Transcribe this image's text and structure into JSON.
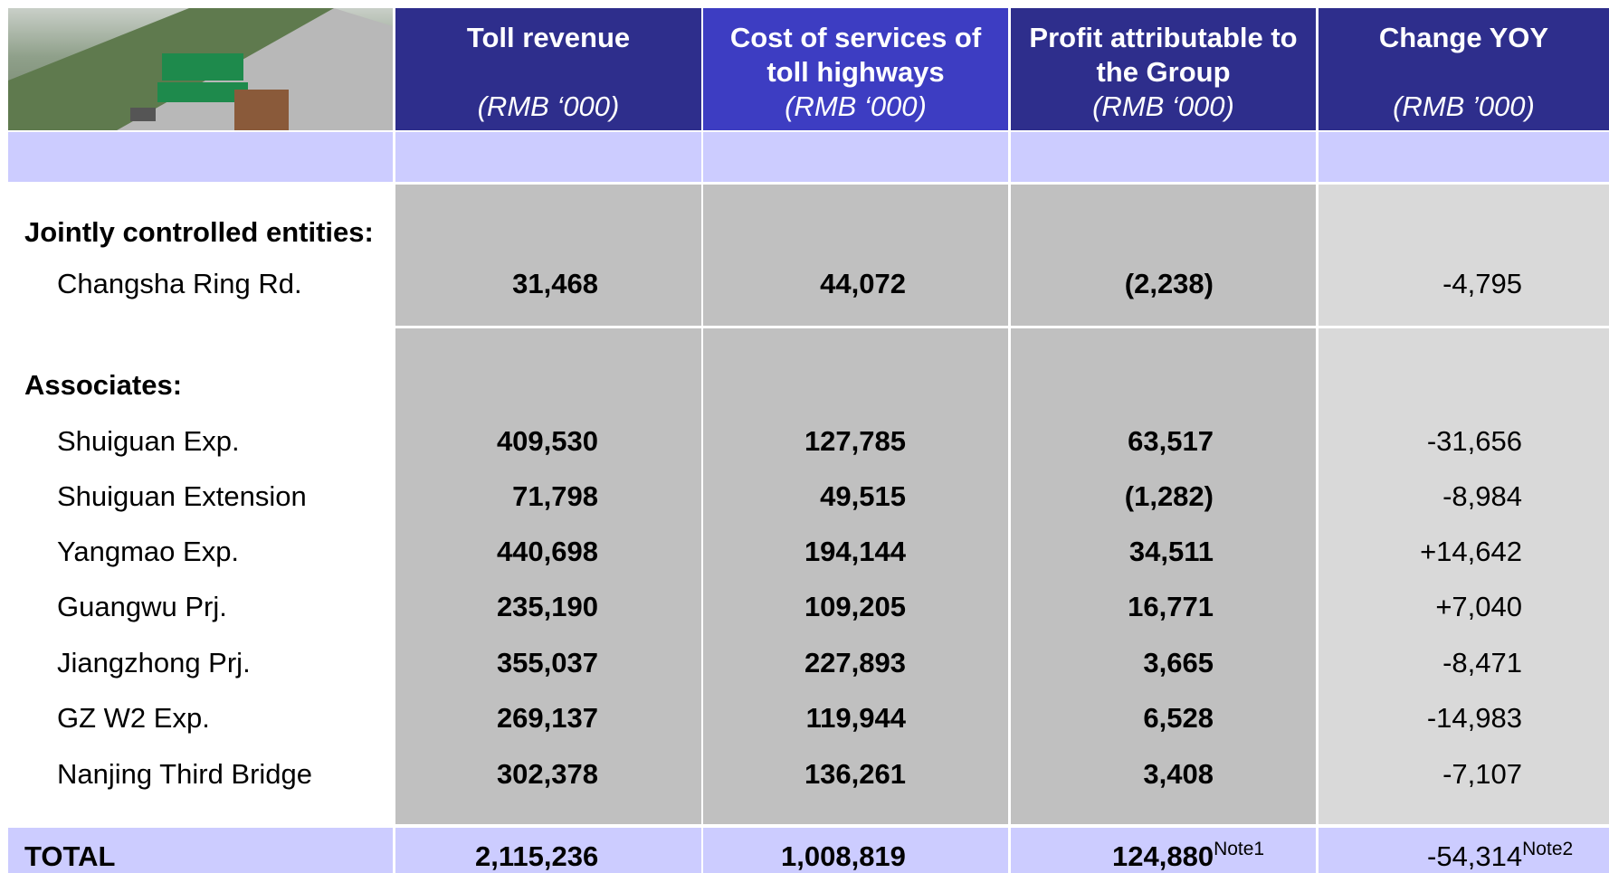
{
  "header": {
    "columns": [
      {
        "title": "Toll revenue",
        "unit": "(RMB ‘000)"
      },
      {
        "title": "Cost of services of toll highways",
        "unit": "(RMB ‘000)"
      },
      {
        "title": "Profit attributable to the Group",
        "unit": "(RMB ‘000)"
      },
      {
        "title": "Change YOY",
        "unit": "(RMB ’000)"
      }
    ]
  },
  "sections": [
    {
      "label": "Jointly controlled entities:",
      "rows": [
        {
          "name": "Changsha Ring Rd.",
          "values": [
            "31,468",
            "44,072",
            "(2,238)",
            "-4,795"
          ]
        }
      ]
    },
    {
      "label": "Associates:",
      "rows": [
        {
          "name": "Shuiguan Exp.",
          "values": [
            "409,530",
            "127,785",
            "63,517",
            "-31,656"
          ]
        },
        {
          "name": "Shuiguan Extension",
          "values": [
            "71,798",
            "49,515",
            "(1,282)",
            "-8,984"
          ]
        },
        {
          "name": "Yangmao Exp.",
          "values": [
            "440,698",
            "194,144",
            "34,511",
            "+14,642"
          ]
        },
        {
          "name": "Guangwu Prj.",
          "values": [
            "235,190",
            "109,205",
            "16,771",
            "+7,040"
          ]
        },
        {
          "name": "Jiangzhong Prj.",
          "values": [
            "355,037",
            "227,893",
            "3,665",
            "-8,471"
          ]
        },
        {
          "name": "GZ W2 Exp.",
          "values": [
            "269,137",
            "119,944",
            "6,528",
            "-14,983"
          ]
        },
        {
          "name": "Nanjing Third Bridge",
          "values": [
            "302,378",
            "136,261",
            "3,408",
            "-7,107"
          ]
        }
      ]
    }
  ],
  "total": {
    "label": "TOTAL",
    "values": [
      {
        "text": "2,115,236"
      },
      {
        "text": "1,008,819"
      },
      {
        "text": "124,880",
        "note": "Note1"
      },
      {
        "text": "-54,314",
        "note": "Note2"
      }
    ]
  }
}
